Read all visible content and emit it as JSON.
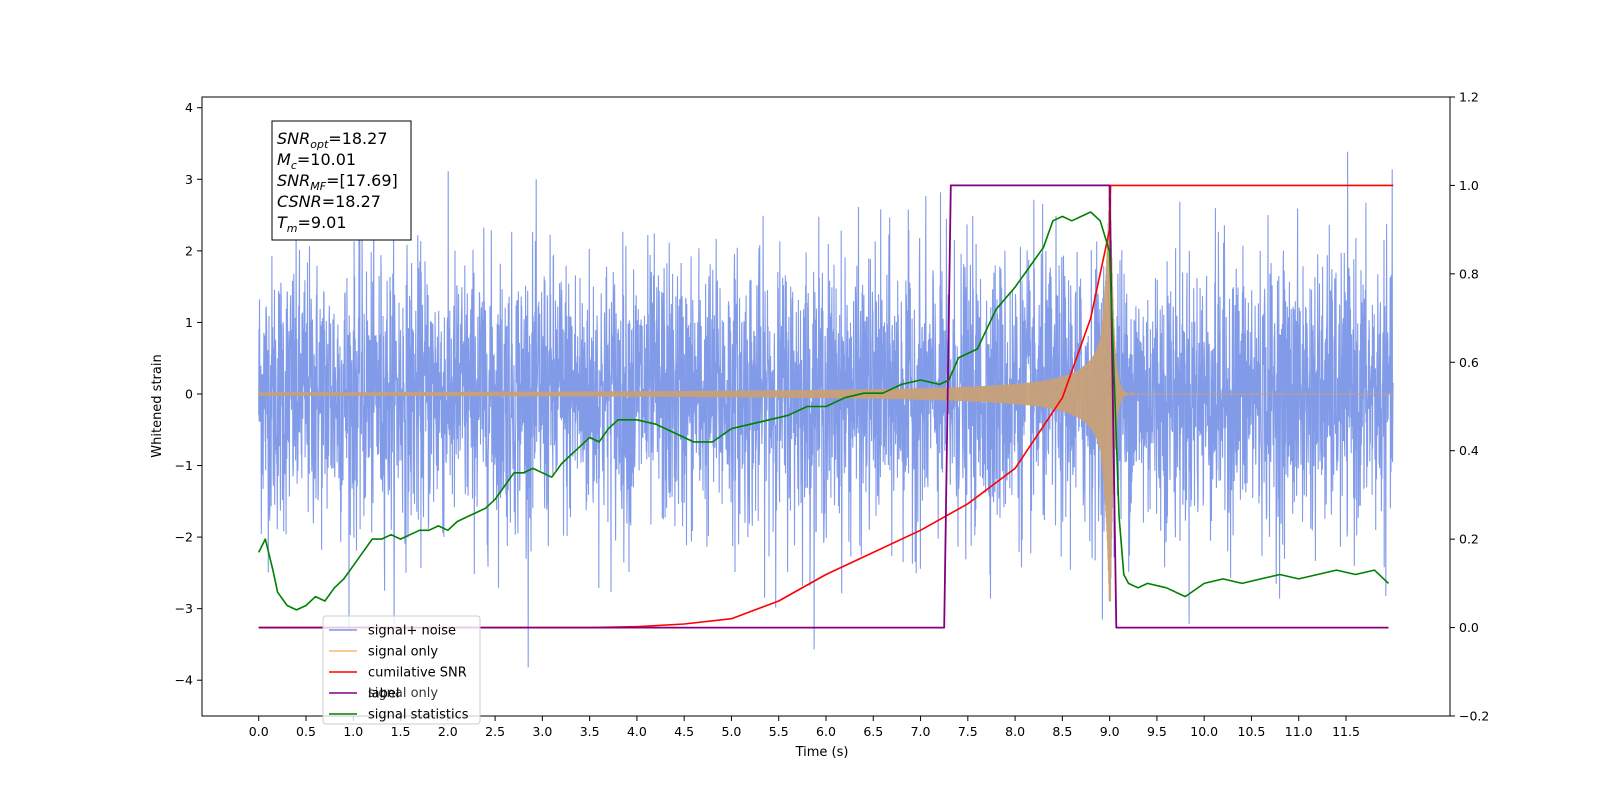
{
  "chart_data": {
    "type": "line",
    "xlabel": "Time (s)",
    "ylabel": "Whitened strain",
    "xlim": [
      -0.6,
      12.6
    ],
    "ylim": [
      -4.5,
      4.15
    ],
    "y2lim": [
      -0.2,
      1.2
    ],
    "x_ticks": [
      "0.0",
      "0.5",
      "1.0",
      "1.5",
      "2.0",
      "2.5",
      "3.0",
      "3.5",
      "4.0",
      "4.5",
      "5.0",
      "5.5",
      "6.0",
      "6.5",
      "7.0",
      "7.5",
      "8.0",
      "8.5",
      "9.0",
      "9.5",
      "10.0",
      "10.5",
      "11.0",
      "11.5"
    ],
    "y_ticks": [
      "4",
      "3",
      "2",
      "1",
      "0",
      "−1",
      "−2",
      "−3",
      "−4"
    ],
    "y2_ticks": [
      "1.2",
      "1.0",
      "0.8",
      "0.6",
      "0.4",
      "0.2",
      "0.0",
      "−0.2"
    ],
    "annotation": [
      {
        "sym": "SNR",
        "sub": "opt",
        "value": "=18.27"
      },
      {
        "sym": "M",
        "sub": "c",
        "value": "=10.01"
      },
      {
        "sym": "SNR",
        "sub": "MF",
        "value": "=[17.69]"
      },
      {
        "sym": "CSNR",
        "sub": "",
        "value": "=18.27"
      },
      {
        "sym": "T",
        "sub": "m",
        "value": "=9.01"
      }
    ],
    "legend_position": "lower-left",
    "legend": [
      {
        "label": "signal+ noise",
        "color": "#7b96e8"
      },
      {
        "label": "signal only",
        "color": "#f5b870"
      },
      {
        "label": "cumilative SNR",
        "color": "#ff0000"
      },
      {
        "label": "label",
        "color": "#800080"
      },
      {
        "label": "signal statistics",
        "color": "#008000"
      }
    ],
    "hidden_legend_text": "signal only",
    "series": [
      {
        "name": "signal+ noise",
        "axis": "left",
        "color": "#7b96e8",
        "noise_sigma": 1.0,
        "t_start": 0.0,
        "t_end": 12.0
      },
      {
        "name": "signal only",
        "axis": "left",
        "color": "#c8a078",
        "merger_time": 9.01,
        "peak_amplitude": 2.9,
        "t_start": 0.0,
        "t_end": 12.0
      },
      {
        "name": "cumilative SNR",
        "axis": "right",
        "x": [
          0.0,
          3.5,
          4.0,
          4.5,
          5.0,
          5.5,
          6.0,
          6.5,
          7.0,
          7.5,
          8.0,
          8.5,
          8.8,
          9.0,
          9.01,
          12.0
        ],
        "y": [
          0.0,
          0.0,
          0.002,
          0.008,
          0.02,
          0.06,
          0.12,
          0.17,
          0.22,
          0.28,
          0.36,
          0.52,
          0.7,
          0.9,
          1.0,
          1.0
        ]
      },
      {
        "name": "label",
        "axis": "right",
        "x": [
          0.0,
          7.25,
          7.32,
          9.0,
          9.07,
          11.95
        ],
        "y": [
          0.0,
          0.0,
          1.0,
          1.0,
          0.0,
          0.0
        ]
      },
      {
        "name": "signal statistics",
        "axis": "right",
        "x": [
          0.0,
          0.07,
          0.15,
          0.2,
          0.3,
          0.4,
          0.5,
          0.6,
          0.7,
          0.8,
          0.9,
          1.0,
          1.1,
          1.2,
          1.3,
          1.4,
          1.5,
          1.6,
          1.7,
          1.8,
          1.9,
          2.0,
          2.1,
          2.2,
          2.3,
          2.4,
          2.5,
          2.6,
          2.7,
          2.8,
          2.9,
          3.0,
          3.1,
          3.2,
          3.3,
          3.4,
          3.5,
          3.6,
          3.7,
          3.8,
          3.9,
          4.0,
          4.2,
          4.4,
          4.6,
          4.8,
          5.0,
          5.2,
          5.4,
          5.6,
          5.8,
          6.0,
          6.2,
          6.4,
          6.6,
          6.8,
          7.0,
          7.2,
          7.3,
          7.4,
          7.6,
          7.8,
          8.0,
          8.2,
          8.3,
          8.4,
          8.5,
          8.6,
          8.7,
          8.8,
          8.9,
          9.0,
          9.05,
          9.1,
          9.15,
          9.2,
          9.3,
          9.4,
          9.6,
          9.8,
          10.0,
          10.2,
          10.4,
          10.6,
          10.8,
          11.0,
          11.2,
          11.4,
          11.6,
          11.8,
          11.95
        ],
        "y": [
          0.17,
          0.2,
          0.13,
          0.08,
          0.05,
          0.04,
          0.05,
          0.07,
          0.06,
          0.09,
          0.11,
          0.14,
          0.17,
          0.2,
          0.2,
          0.21,
          0.2,
          0.21,
          0.22,
          0.22,
          0.23,
          0.22,
          0.24,
          0.25,
          0.26,
          0.27,
          0.29,
          0.32,
          0.35,
          0.35,
          0.36,
          0.35,
          0.34,
          0.37,
          0.39,
          0.41,
          0.43,
          0.42,
          0.45,
          0.47,
          0.47,
          0.47,
          0.46,
          0.44,
          0.42,
          0.42,
          0.45,
          0.46,
          0.47,
          0.48,
          0.5,
          0.5,
          0.52,
          0.53,
          0.53,
          0.55,
          0.56,
          0.55,
          0.56,
          0.61,
          0.63,
          0.72,
          0.77,
          0.83,
          0.86,
          0.92,
          0.93,
          0.92,
          0.93,
          0.94,
          0.92,
          0.85,
          0.55,
          0.25,
          0.12,
          0.1,
          0.09,
          0.1,
          0.09,
          0.07,
          0.1,
          0.11,
          0.1,
          0.11,
          0.12,
          0.11,
          0.12,
          0.13,
          0.12,
          0.13,
          0.1
        ]
      }
    ]
  }
}
